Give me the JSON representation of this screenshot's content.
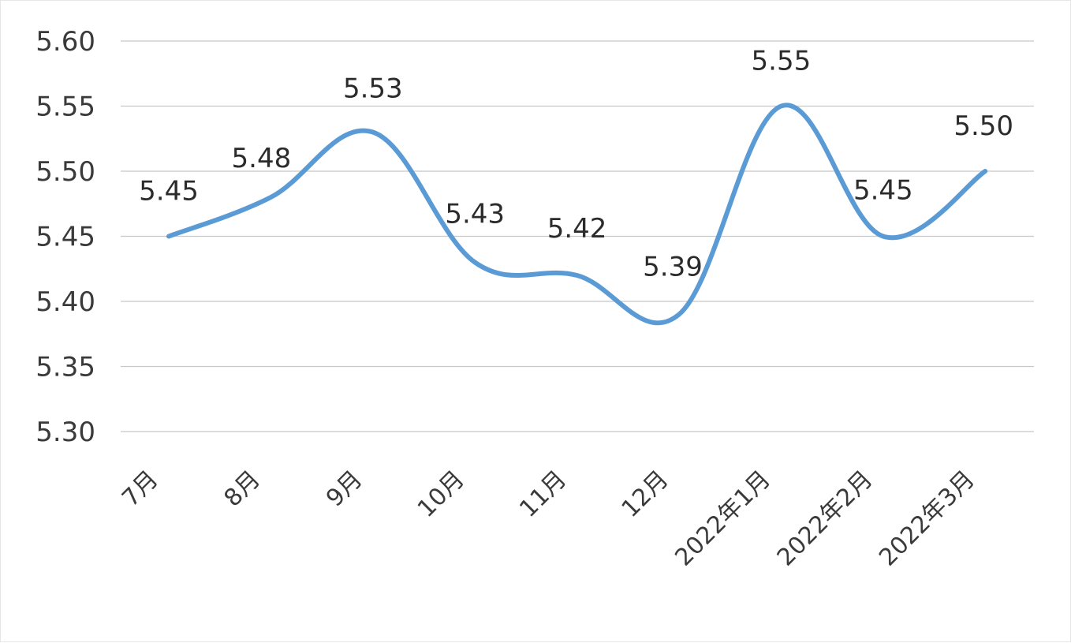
{
  "chart_data": {
    "type": "line",
    "categories": [
      "7月",
      "8月",
      "9月",
      "10月",
      "11月",
      "12月",
      "2022年1月",
      "2022年2月",
      "2022年3月"
    ],
    "series": [
      {
        "values": [
          5.45,
          5.48,
          5.53,
          5.43,
          5.42,
          5.39,
          5.55,
          5.45,
          5.5
        ],
        "data_labels": [
          "5.45",
          "5.48",
          "5.53",
          "5.43",
          "5.42",
          "5.39",
          "5.55",
          "5.45",
          "5.50"
        ]
      }
    ],
    "yticks": [
      "5.30",
      "5.35",
      "5.40",
      "5.45",
      "5.50",
      "5.55",
      "5.60"
    ],
    "ylim": [
      5.3,
      5.6
    ],
    "smooth": true,
    "grid": "horizontal",
    "legend": "none",
    "colors": {
      "line": "#5b9bd5"
    }
  }
}
